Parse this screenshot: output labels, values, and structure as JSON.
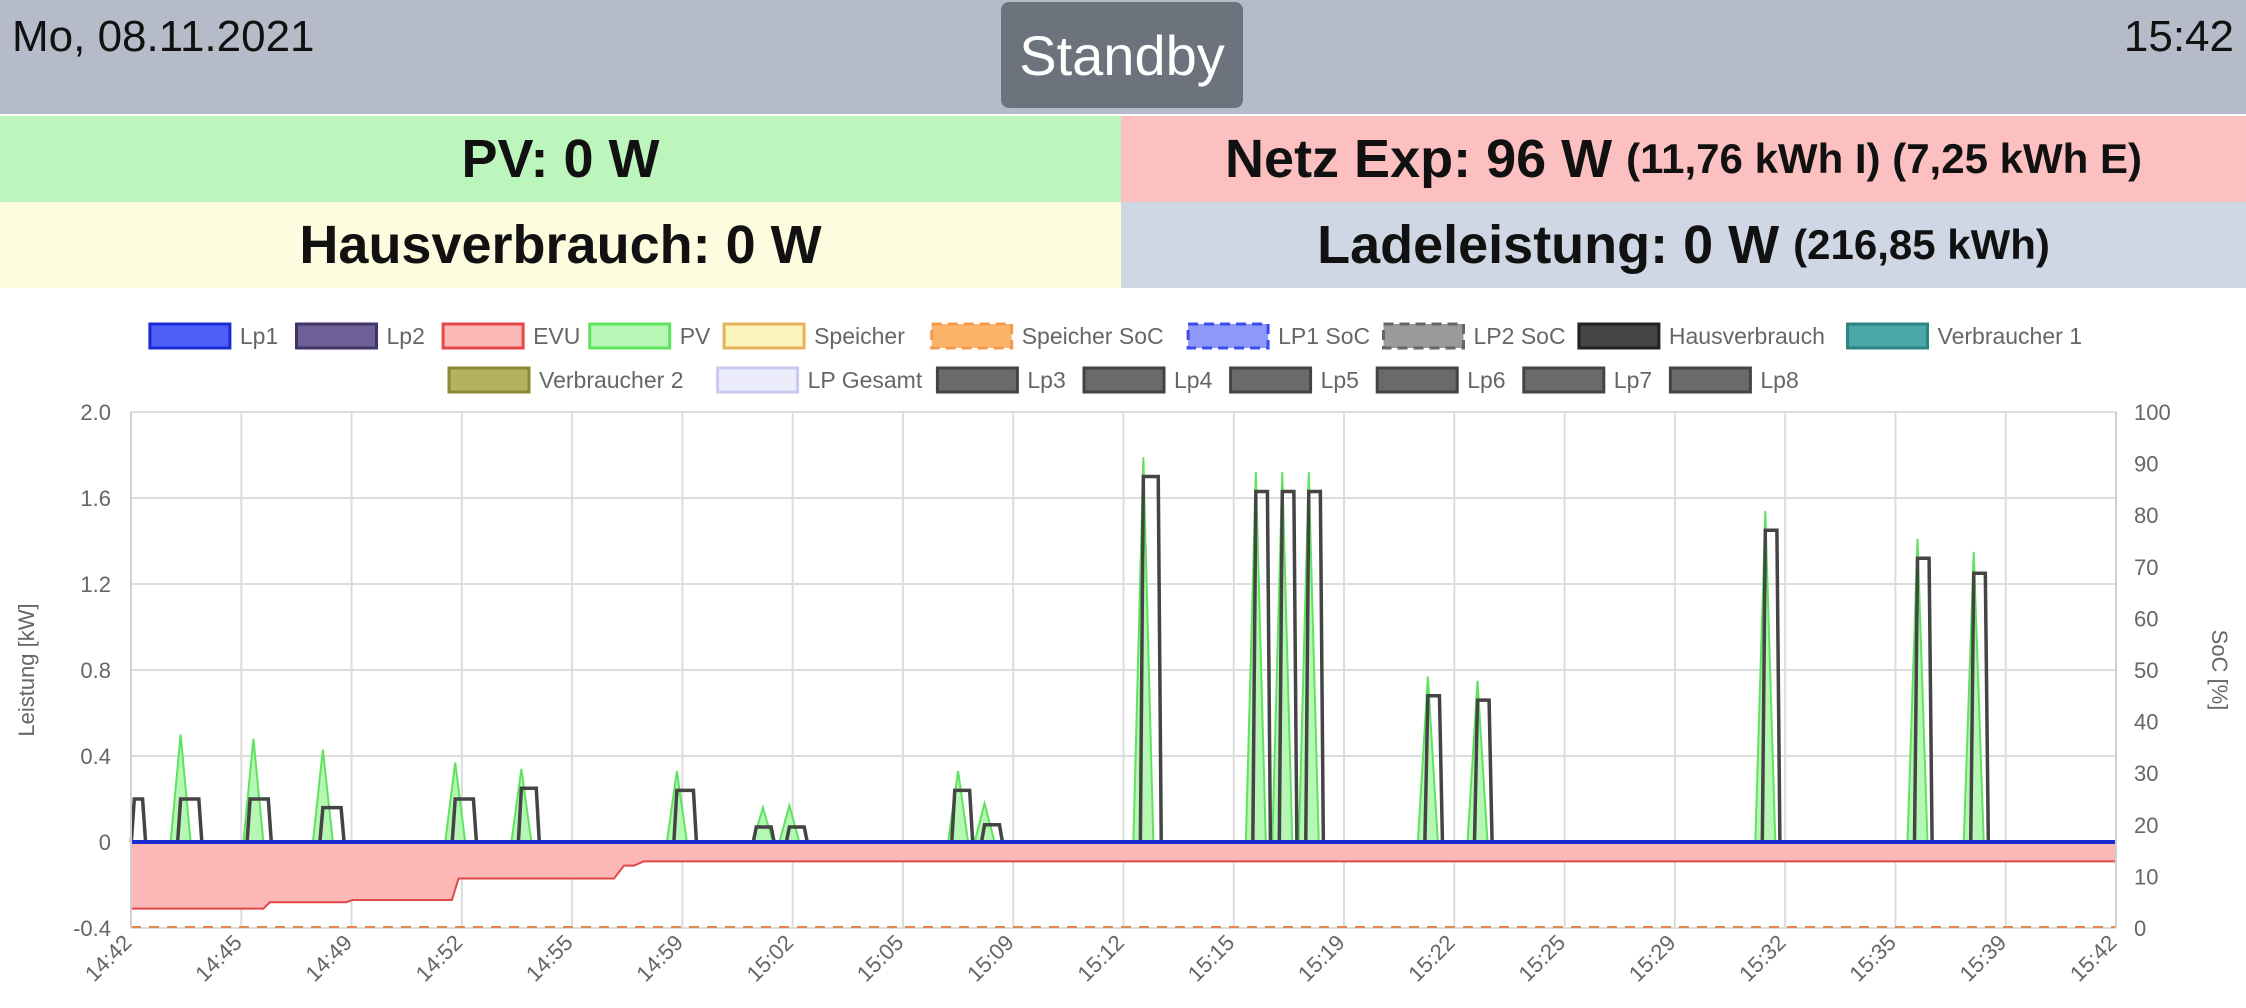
{
  "header": {
    "date": "Mo, 08.11.2021",
    "time": "15:42",
    "mode": "Standby"
  },
  "tiles": {
    "pv": {
      "label": "PV: 0 W",
      "extra": ""
    },
    "netz": {
      "label": "Netz Exp: 96 W",
      "extra": "(11,76 kWh I) (7,25 kWh E)"
    },
    "haus": {
      "label": "Hausverbrauch: 0 W",
      "extra": ""
    },
    "lade": {
      "label": "Ladeleistung: 0 W",
      "extra": "(216,85 kWh)"
    }
  },
  "colors": {
    "pv_tile": "#bcf6bc",
    "netz_tile": "#fcc0c0",
    "haus_tile": "#fdfcdf",
    "lade_tile": "#cfd6e4",
    "header": "#b5bbc8",
    "standby_button": "#6c737c"
  },
  "chart_data": {
    "type": "line",
    "ylabel": "Leistung [kW]",
    "y2label": "SoC [%]",
    "ylim": [
      -0.4,
      2.0
    ],
    "yticks": [
      "2.0",
      "1.6",
      "1.2",
      "0.8",
      "0.4",
      "0",
      "-0.4"
    ],
    "y2lim": [
      0,
      100
    ],
    "y2ticks": [
      "100",
      "90",
      "80",
      "70",
      "60",
      "50",
      "40",
      "30",
      "20",
      "10",
      "0"
    ],
    "xticks": [
      "14:42",
      "14:45",
      "14:49",
      "14:52",
      "14:55",
      "14:59",
      "15:02",
      "15:05",
      "15:09",
      "15:12",
      "15:15",
      "15:19",
      "15:22",
      "15:25",
      "15:29",
      "15:32",
      "15:35",
      "15:39",
      "15:42"
    ],
    "grid": true,
    "legend_position": "top",
    "legend": [
      {
        "name": "Lp1",
        "fill": "#4d5df5",
        "stroke": "#1a2bd6",
        "dashed": false
      },
      {
        "name": "Lp2",
        "fill": "#6e5f98",
        "stroke": "#3f3566",
        "dashed": false
      },
      {
        "name": "EVU",
        "fill": "#fcb7b7",
        "stroke": "#e34848",
        "dashed": false
      },
      {
        "name": "PV",
        "fill": "#b6f7b6",
        "stroke": "#5fe35f",
        "dashed": false
      },
      {
        "name": "Speicher",
        "fill": "#fbf5bd",
        "stroke": "#e8b25a",
        "dashed": false
      },
      {
        "name": "Speicher SoC",
        "fill": "#fbb46a",
        "stroke": "#f29b4e",
        "dashed": true
      },
      {
        "name": "LP1 SoC",
        "fill": "#8f97f7",
        "stroke": "#3a4cf0",
        "dashed": true
      },
      {
        "name": "LP2 SoC",
        "fill": "#9a9a9a",
        "stroke": "#666666",
        "dashed": true
      },
      {
        "name": "Hausverbrauch",
        "fill": "#444444",
        "stroke": "#222222",
        "dashed": false
      },
      {
        "name": "Verbraucher 1",
        "fill": "#4aa8a8",
        "stroke": "#2c8585",
        "dashed": false
      },
      {
        "name": "Verbraucher 2",
        "fill": "#b2b260",
        "stroke": "#8a8a30",
        "dashed": false
      },
      {
        "name": "LP Gesamt",
        "fill": "#ececfb",
        "stroke": "#c9c9ef",
        "dashed": false
      },
      {
        "name": "Lp3",
        "fill": "#6a6a6a",
        "stroke": "#444444",
        "dashed": false
      },
      {
        "name": "Lp4",
        "fill": "#6a6a6a",
        "stroke": "#444444",
        "dashed": false
      },
      {
        "name": "Lp5",
        "fill": "#6a6a6a",
        "stroke": "#444444",
        "dashed": false
      },
      {
        "name": "Lp6",
        "fill": "#6a6a6a",
        "stroke": "#444444",
        "dashed": false
      },
      {
        "name": "Lp7",
        "fill": "#6a6a6a",
        "stroke": "#444444",
        "dashed": false
      },
      {
        "name": "Lp8",
        "fill": "#6a6a6a",
        "stroke": "#444444",
        "dashed": false
      }
    ],
    "series": {
      "evu": [
        [
          0,
          -0.31
        ],
        [
          4,
          -0.31
        ],
        [
          4.2,
          -0.28
        ],
        [
          6.5,
          -0.28
        ],
        [
          6.7,
          -0.27
        ],
        [
          9.7,
          -0.27
        ],
        [
          9.9,
          -0.17
        ],
        [
          14.6,
          -0.17
        ],
        [
          14.9,
          -0.11
        ],
        [
          15.2,
          -0.11
        ],
        [
          15.5,
          -0.09
        ],
        [
          60,
          -0.09
        ]
      ],
      "lp1": [
        [
          0,
          0
        ],
        [
          60,
          0
        ]
      ],
      "speicher_soc": [
        [
          0,
          0
        ],
        [
          60,
          0
        ]
      ],
      "hausverbrauch_pulses": [
        {
          "t": 0.1,
          "w": 0.25,
          "v": 0.2
        },
        {
          "t": 1.5,
          "w": 0.55,
          "v": 0.2
        },
        {
          "t": 3.6,
          "w": 0.55,
          "v": 0.2
        },
        {
          "t": 5.8,
          "w": 0.55,
          "v": 0.16
        },
        {
          "t": 9.8,
          "w": 0.55,
          "v": 0.2
        },
        {
          "t": 11.8,
          "w": 0.45,
          "v": 0.25
        },
        {
          "t": 16.5,
          "w": 0.5,
          "v": 0.24
        },
        {
          "t": 18.9,
          "w": 0.45,
          "v": 0.07
        },
        {
          "t": 19.9,
          "w": 0.45,
          "v": 0.07
        },
        {
          "t": 24.9,
          "w": 0.45,
          "v": 0.24
        },
        {
          "t": 25.8,
          "w": 0.45,
          "v": 0.08
        },
        {
          "t": 30.6,
          "w": 0.45,
          "v": 1.7
        },
        {
          "t": 34,
          "w": 0.35,
          "v": 1.63
        },
        {
          "t": 34.8,
          "w": 0.35,
          "v": 1.63
        },
        {
          "t": 35.6,
          "w": 0.35,
          "v": 1.63
        },
        {
          "t": 39.2,
          "w": 0.35,
          "v": 0.68
        },
        {
          "t": 40.7,
          "w": 0.35,
          "v": 0.66
        },
        {
          "t": 49.4,
          "w": 0.35,
          "v": 1.45
        },
        {
          "t": 54,
          "w": 0.35,
          "v": 1.32
        },
        {
          "t": 55.7,
          "w": 0.35,
          "v": 1.25
        }
      ],
      "pv_spikes": [
        {
          "t": 1.5,
          "v": 0.5
        },
        {
          "t": 3.7,
          "v": 0.48
        },
        {
          "t": 5.8,
          "v": 0.43
        },
        {
          "t": 9.8,
          "v": 0.37
        },
        {
          "t": 11.8,
          "v": 0.34
        },
        {
          "t": 16.5,
          "v": 0.33
        },
        {
          "t": 19.1,
          "v": 0.16
        },
        {
          "t": 19.9,
          "v": 0.17
        },
        {
          "t": 25,
          "v": 0.33
        },
        {
          "t": 25.8,
          "v": 0.18
        },
        {
          "t": 30.6,
          "v": 1.79
        },
        {
          "t": 34,
          "v": 1.72
        },
        {
          "t": 34.8,
          "v": 1.72
        },
        {
          "t": 35.6,
          "v": 1.72
        },
        {
          "t": 39.2,
          "v": 0.77
        },
        {
          "t": 40.7,
          "v": 0.75
        },
        {
          "t": 49.4,
          "v": 1.54
        },
        {
          "t": 54,
          "v": 1.41
        },
        {
          "t": 55.7,
          "v": 1.35
        }
      ]
    }
  }
}
